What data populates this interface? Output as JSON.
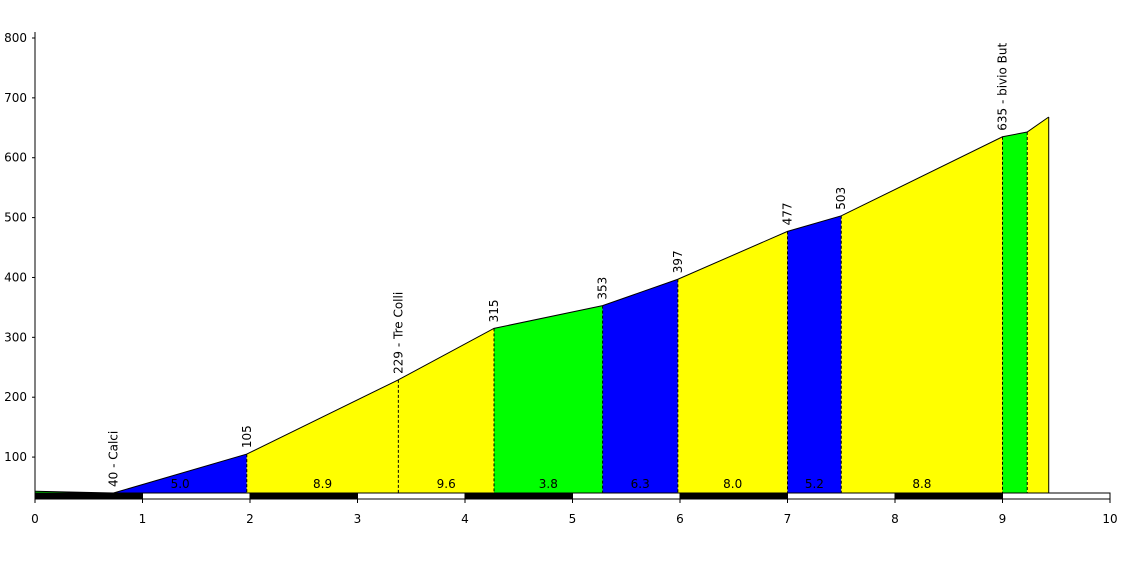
{
  "chart_data": {
    "type": "elevation-profile",
    "x": [
      0,
      0.73,
      1.97,
      3.38,
      4.27,
      5.28,
      5.98,
      7.0,
      7.5,
      9.0,
      9.23,
      9.43
    ],
    "values": [
      43,
      40,
      105,
      229,
      315,
      353,
      397,
      477,
      503,
      635,
      643,
      668
    ],
    "value_labels": [
      null,
      "40 - Calci",
      "105",
      "229 - Tre Colli",
      "315",
      "353",
      "397",
      "477",
      "503",
      "635 - bivio But",
      null,
      null
    ],
    "segment_colors": [
      "#00ff00",
      "#0000ff",
      "#ffff00",
      "#ffff00",
      "#00ff00",
      "#0000ff",
      "#ffff00",
      "#0000ff",
      "#ffff00",
      "#00ff00",
      "#ffff00"
    ],
    "grades": [
      null,
      {
        "value": 5.0,
        "label": "5.0"
      },
      {
        "value": 8.9,
        "label": "8.9"
      },
      {
        "value": 9.6,
        "label": "9.6"
      },
      {
        "value": 3.8,
        "label": "3.8"
      },
      {
        "value": 6.3,
        "label": "6.3"
      },
      {
        "value": 8.0,
        "label": "8.0"
      },
      {
        "value": 5.2,
        "label": "5.2"
      },
      {
        "value": 8.8,
        "label": "8.8"
      },
      null,
      null
    ],
    "xlim": [
      0,
      10
    ],
    "xticks": [
      0,
      1,
      2,
      3,
      4,
      5,
      6,
      7,
      8,
      9,
      10
    ],
    "ylim": [
      40,
      810
    ],
    "yticks": [
      100,
      200,
      300,
      400,
      500,
      600,
      700,
      800
    ]
  }
}
